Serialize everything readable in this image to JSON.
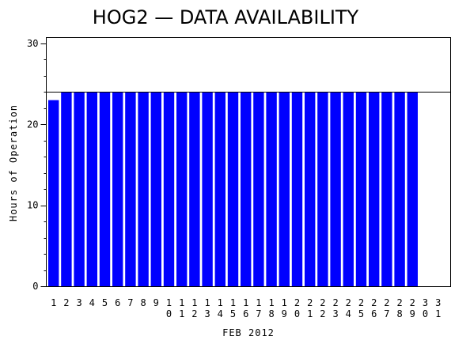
{
  "chart_data": {
    "type": "bar",
    "title": "HOG2 — DATA AVAILABILITY",
    "ylabel": "Hours of Operation",
    "xlabel": "FEB 2012",
    "ylim": [
      0,
      30
    ],
    "y_ticks": [
      "0",
      "10",
      "20",
      "30"
    ],
    "reference_line": 24,
    "bar_color": "#0000ff",
    "categories": [
      "1",
      "2",
      "3",
      "4",
      "5",
      "6",
      "7",
      "8",
      "9",
      "10",
      "11",
      "12",
      "13",
      "14",
      "15",
      "16",
      "17",
      "18",
      "19",
      "20",
      "21",
      "22",
      "23",
      "24",
      "25",
      "26",
      "27",
      "28",
      "29",
      "30",
      "31"
    ],
    "values": [
      23,
      24,
      24,
      24,
      24,
      24,
      24,
      24,
      24,
      24,
      24,
      24,
      24,
      24,
      24,
      24,
      24,
      24,
      24,
      24,
      24,
      24,
      24,
      24,
      24,
      24,
      24,
      24,
      24,
      null,
      null
    ]
  }
}
